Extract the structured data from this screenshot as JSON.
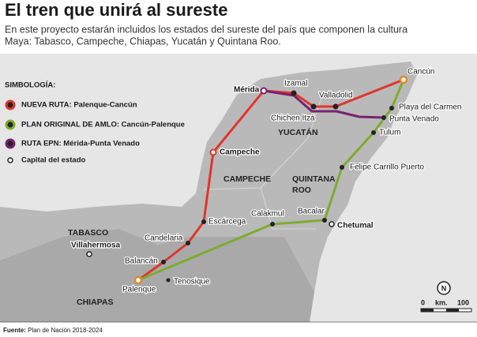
{
  "header": {
    "title": "El tren que unirá al sureste",
    "subtitle_lines": [
      "En este proyecto estarán incluidos los estados del sureste del país que componen la cultura",
      "Maya: Tabasco, Campeche, Chiapas, Yucatán y Quintana Roo."
    ]
  },
  "legend": {
    "title": "SIMBOLOGÍA:",
    "items": [
      "NUEVA RUTA: Palenque-Cancún",
      "PLAN ORIGINAL DE AMLO: Cancún-Palenque",
      "RUTA EPN: Mérida-Punta Venado",
      "Capital del estado"
    ]
  },
  "places": [
    "Cancún",
    "Playa del Carmen",
    "Punta Venado",
    "Tulum",
    "Felipe Carrillo Puerto",
    "Bacalar",
    "Calakmul",
    "Escárcega",
    "Candelaria",
    "Balancán",
    "Palenque",
    "Tenosique",
    "Izamal",
    "Valladolid",
    "Chichen Itzá"
  ],
  "capitals": [
    "Campeche",
    "Mérida",
    "Chetumal",
    "Villahermosa"
  ],
  "states": [
    "TABASCO",
    "CAMPECHE",
    "YUCATÁN",
    [
      "QUINTANA",
      "ROO"
    ],
    "CHIAPAS"
  ],
  "north": "N",
  "scale": [
    "0",
    "km.",
    "100"
  ],
  "source": {
    "label": "Fuente:",
    "text": "Plan de Nación 2018-2024"
  }
}
